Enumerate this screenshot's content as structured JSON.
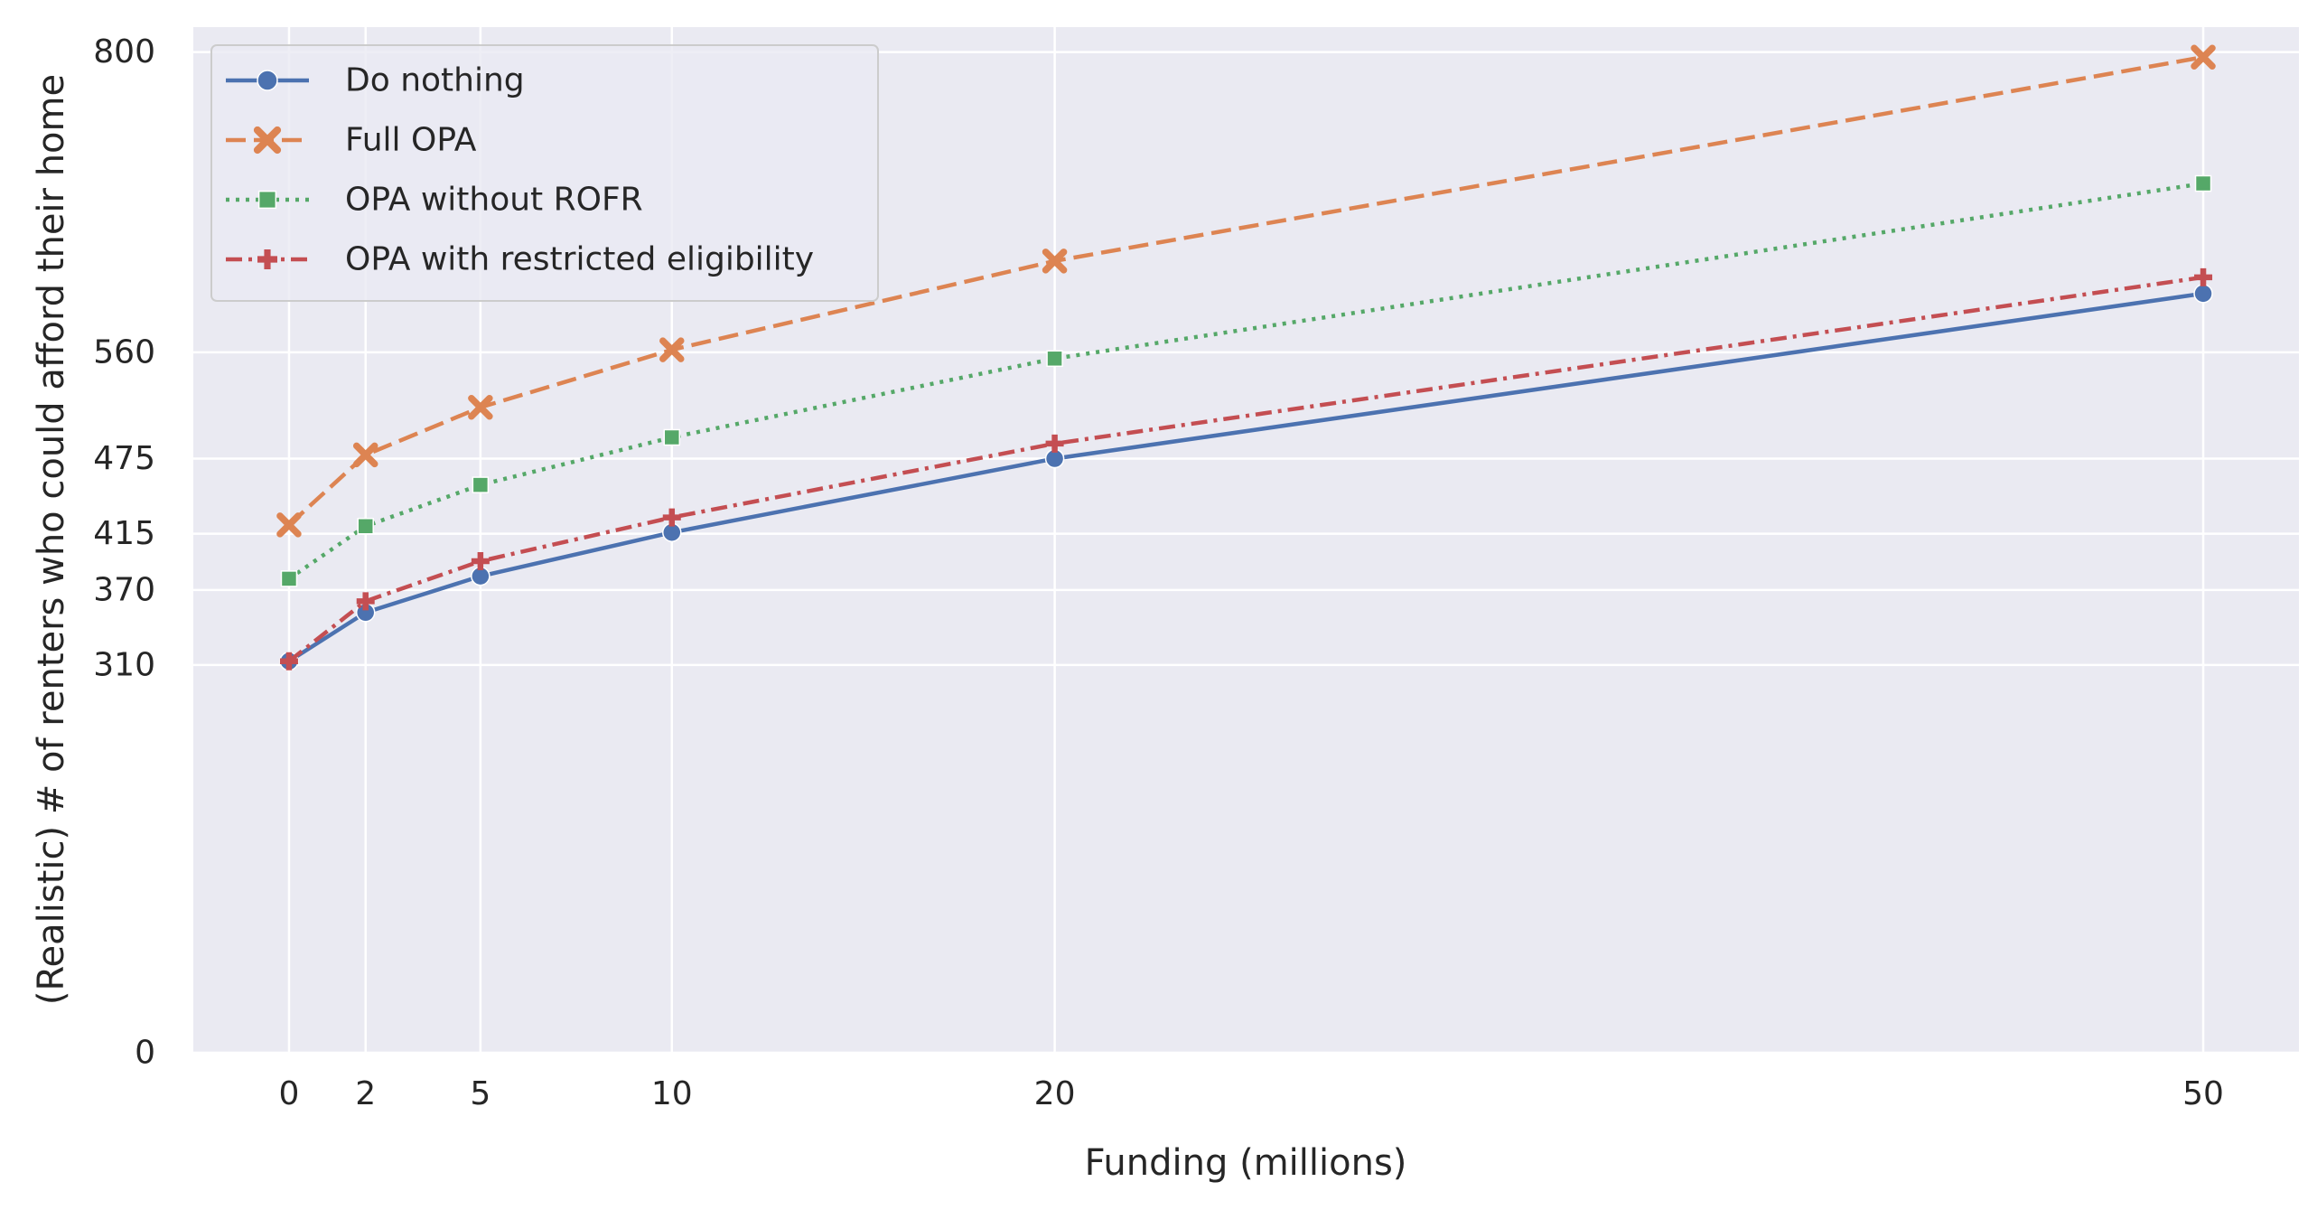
{
  "chart_data": {
    "type": "line",
    "xlabel": "Funding (millions)",
    "ylabel": "(Realistic) # of renters who could afford their home",
    "x": [
      0,
      2,
      5,
      10,
      20,
      50
    ],
    "x_ticks": [
      0,
      2,
      5,
      10,
      20,
      50
    ],
    "x_tick_labels": [
      "0",
      "2",
      "5",
      "10",
      "20",
      "50"
    ],
    "y_ticks": [
      0,
      310,
      370,
      415,
      475,
      560,
      800
    ],
    "y_tick_labels": [
      "0",
      "310",
      "370",
      "415",
      "475",
      "560",
      "800"
    ],
    "xlim": [
      -2.5,
      52.5
    ],
    "ylim": [
      0,
      820
    ],
    "grid": true,
    "legend_position": "top-left",
    "series": [
      {
        "name": "Do nothing",
        "values": [
          313,
          352,
          381,
          416,
          475,
          607
        ],
        "color": "#4c72b0",
        "marker": "circle",
        "dash": "solid"
      },
      {
        "name": "Full OPA",
        "values": [
          422,
          478,
          516,
          562,
          633,
          796
        ],
        "color": "#dd8452",
        "marker": "x",
        "dash": "dashed"
      },
      {
        "name": "OPA without ROFR",
        "values": [
          379,
          421,
          454,
          492,
          555,
          695
        ],
        "color": "#55a868",
        "marker": "square",
        "dash": "dotted"
      },
      {
        "name": "OPA with restricted eligibility",
        "values": [
          313,
          361,
          393,
          428,
          487,
          620
        ],
        "color": "#c44e52",
        "marker": "plus",
        "dash": "dashdot"
      }
    ]
  }
}
